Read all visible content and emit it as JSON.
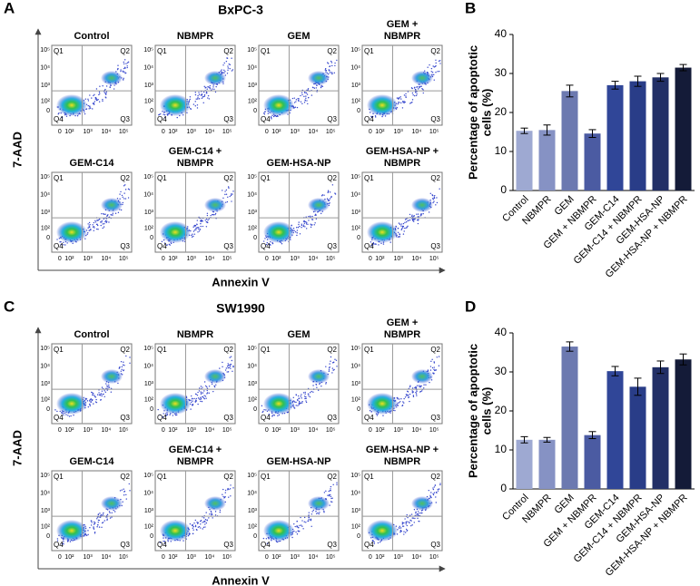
{
  "panel_labels": [
    "A",
    "B",
    "C",
    "D"
  ],
  "flow_axis": {
    "quadrants": [
      "Q1",
      "Q2",
      "Q4",
      "Q3"
    ],
    "xticks": [
      "0",
      "10²",
      "10³",
      "10⁴",
      "10⁵"
    ],
    "yticks": [
      "10⁵",
      "10⁴",
      "10³",
      "10²",
      "0"
    ]
  },
  "flow_groups": [
    {
      "title": "BxPC-3",
      "y_label": "7-AAD",
      "x_label": "Annexin V",
      "plots": [
        {
          "title": [
            "Control"
          ]
        },
        {
          "title": [
            "NBMPR"
          ]
        },
        {
          "title": [
            "GEM"
          ]
        },
        {
          "title": [
            "GEM +",
            "NBMPR"
          ]
        },
        {
          "title": [
            "GEM-C14"
          ]
        },
        {
          "title": [
            "GEM-C14 +",
            "NBMPR"
          ]
        },
        {
          "title": [
            "GEM-HSA-NP"
          ]
        },
        {
          "title": [
            "GEM-HSA-NP +",
            "NBMPR"
          ]
        }
      ]
    },
    {
      "title": "SW1990",
      "y_label": "7-AAD",
      "x_label": "Annexin V",
      "plots": [
        {
          "title": [
            "Control"
          ]
        },
        {
          "title": [
            "NBMPR"
          ]
        },
        {
          "title": [
            "GEM"
          ]
        },
        {
          "title": [
            "GEM +",
            "NBMPR"
          ]
        },
        {
          "title": [
            "GEM-C14"
          ]
        },
        {
          "title": [
            "GEM-C14 +",
            "NBMPR"
          ]
        },
        {
          "title": [
            "GEM-HSA-NP"
          ]
        },
        {
          "title": [
            "GEM-HSA-NP +",
            "NBMPR"
          ]
        }
      ]
    }
  ],
  "chart_data": [
    {
      "type": "bar",
      "y_label": [
        "Percentage of apoptotic",
        "cells (%)"
      ],
      "categories": [
        "Control",
        "NBMPR",
        "GEM",
        "GEM + NBMPR",
        "GEM-C14",
        "GEM-C14 + NBMPR",
        "GEM-HSA-NP",
        "GEM-HSA-NP + NBMPR"
      ],
      "values": [
        15.3,
        15.5,
        25.5,
        14.6,
        27,
        28,
        29,
        31.5
      ],
      "errors": [
        0.7,
        1.3,
        1.5,
        1.0,
        1.0,
        1.3,
        1.0,
        0.8
      ],
      "colors": [
        "#9ea9d2",
        "#8692c4",
        "#6c79b0",
        "#4b5ba2",
        "#304698",
        "#293d88",
        "#222f66",
        "#141b38"
      ],
      "ylim": [
        0,
        40
      ],
      "yticks": [
        0,
        10,
        20,
        30,
        40
      ]
    },
    {
      "type": "bar",
      "y_label": [
        "Percentage of apoptotic",
        "cells (%)"
      ],
      "categories": [
        "Control",
        "NBMPR",
        "GEM",
        "GEM + NBMPR",
        "GEM-C14",
        "GEM-C14 + NBMPR",
        "GEM-HSA-NP",
        "GEM-HSA-NP + NBMPR"
      ],
      "values": [
        12.6,
        12.6,
        36.5,
        13.8,
        30.2,
        26.2,
        31.2,
        33.2
      ],
      "errors": [
        0.8,
        0.6,
        1.2,
        0.9,
        1.2,
        2.2,
        1.6,
        1.4
      ],
      "colors": [
        "#9ea9d2",
        "#8692c4",
        "#6c79b0",
        "#4b5ba2",
        "#304698",
        "#293d88",
        "#222f66",
        "#141b38"
      ],
      "ylim": [
        0,
        40
      ],
      "yticks": [
        0,
        10,
        20,
        30,
        40
      ]
    }
  ]
}
